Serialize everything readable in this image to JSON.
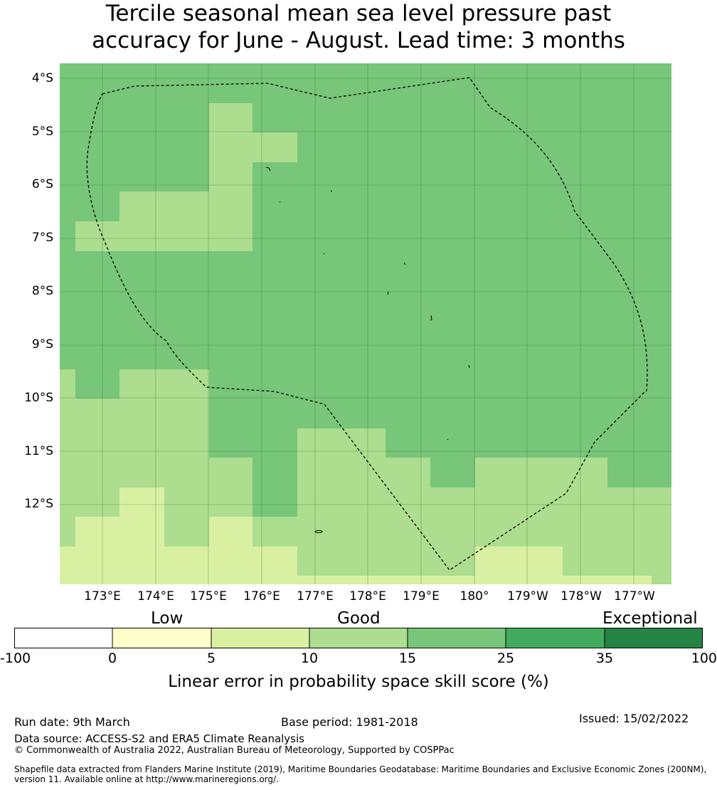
{
  "title": {
    "line1": "Tercile seasonal mean sea level pressure past",
    "line2": "accuracy for June - August. Lead time: 3 months"
  },
  "map": {
    "lat_labels": [
      "4°S",
      "5°S",
      "6°S",
      "7°S",
      "8°S",
      "9°S",
      "10°S",
      "11°S",
      "12°S"
    ],
    "lon_labels": [
      "173°E",
      "174°E",
      "175°E",
      "176°E",
      "177°E",
      "178°E",
      "179°E",
      "180°",
      "179°W",
      "178°W",
      "177°W"
    ],
    "colors": {
      "c_0_5": "#ffffcc",
      "c_5_10": "#d9f0a3",
      "c_10_15": "#addd8e",
      "c_15_25": "#78c679",
      "c_25_35": "#41ab5d",
      "c_35_100": "#238443",
      "below_0": "#ffffff"
    },
    "base_color": "#78c679",
    "boundary_name": "exclusive-economic-zone"
  },
  "colorbar": {
    "category_labels": [
      "Low",
      "Good",
      "Exceptional"
    ],
    "tick_labels": [
      "-100",
      "0",
      "5",
      "10",
      "15",
      "25",
      "35",
      "100"
    ],
    "segment_colors": [
      "#ffffff",
      "#ffffcc",
      "#d9f0a3",
      "#addd8e",
      "#78c679",
      "#41ab5d",
      "#238443"
    ],
    "title": "Linear error in probability space skill score (%)"
  },
  "footer": {
    "run_date": "Run date: 9th March",
    "base_period": "Base period: 1981-2018",
    "issued": "Issued: 15/02/2022",
    "data_source": "Data source: ACCESS-S2 and ERA5 Climate Reanalysis",
    "copyright": "© Commonwealth of Australia 2022, Australian Bureau of Meteorology, Supported by COSPPac",
    "shapefile_line1": "Shapefile data extracted from Flanders Marine Institute (2019), Maritime Boundaries Geodatabase: Maritime Boundaries and Exclusive Economic Zones (200NM),",
    "shapefile_line2": "version 11. Available online at http://www.marineregions.org/."
  }
}
